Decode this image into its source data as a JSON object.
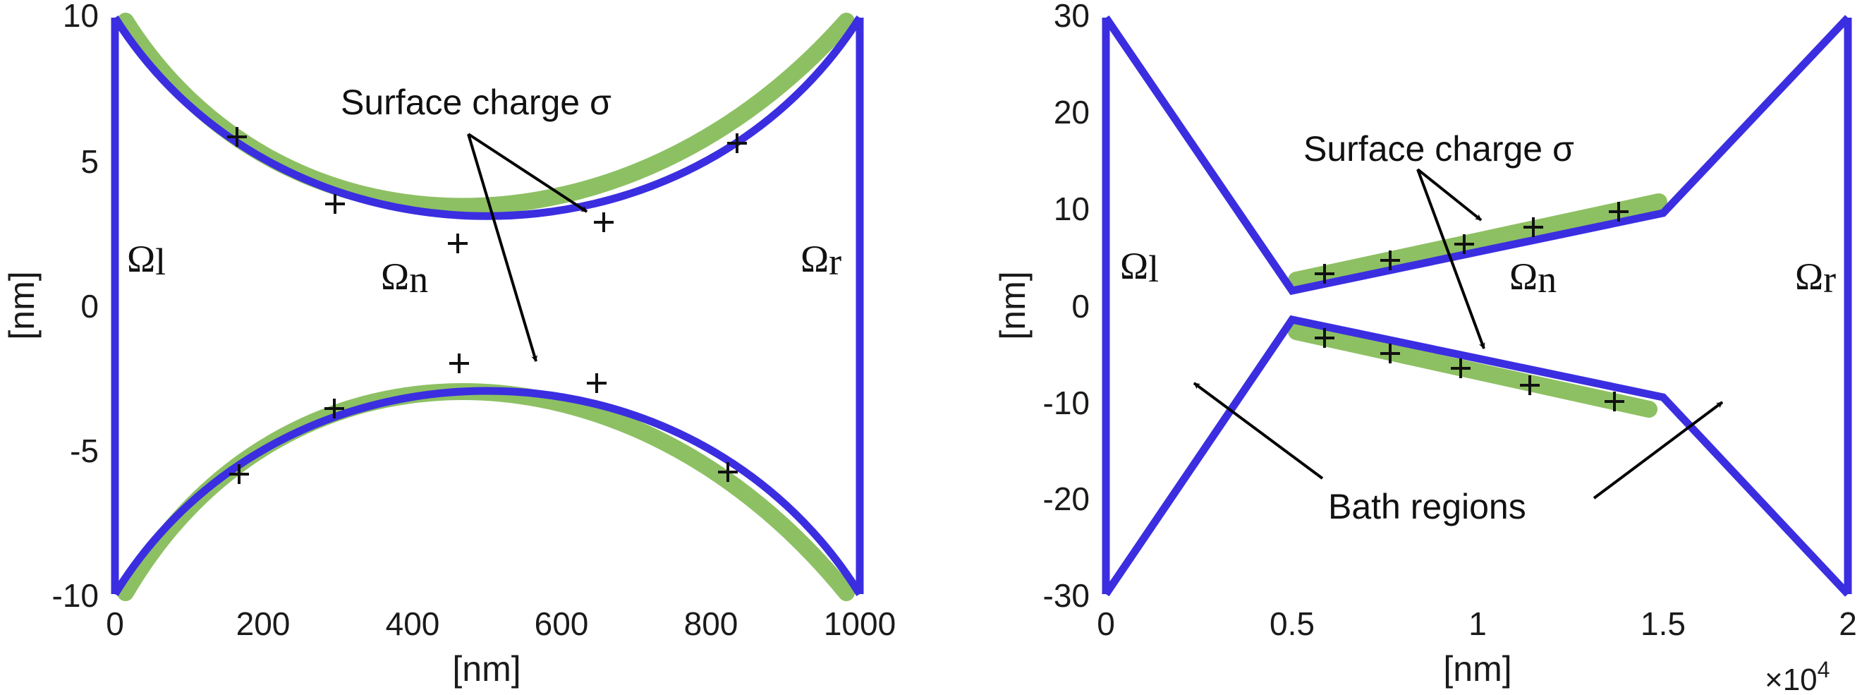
{
  "colors": {
    "boundary": "#3b2ee0",
    "surface_charge": "#8dc063",
    "marker": "#111111"
  },
  "panels": [
    {
      "x_ticks": [
        "0",
        "200",
        "400",
        "600",
        "800",
        "1000"
      ],
      "y_ticks": [
        "10",
        "5",
        "0",
        "-5",
        "-10"
      ],
      "xlabel": "[nm]",
      "ylabel": "[nm]",
      "annotation": "Surface charge σ",
      "regions": [
        {
          "main": "Ω",
          "sub": "l"
        },
        {
          "main": "Ω",
          "sub": "n"
        },
        {
          "main": "Ω",
          "sub": "r"
        }
      ]
    },
    {
      "x_ticks": [
        "0",
        "0.5",
        "1",
        "1.5",
        "2"
      ],
      "y_ticks": [
        "30",
        "20",
        "10",
        "0",
        "-10",
        "-20",
        "-30"
      ],
      "xlabel": "[nm]",
      "ylabel": "[nm]",
      "x_exponent_base": "×10",
      "x_exponent_power": "4",
      "annotation": "Surface charge σ",
      "annotation2": "Bath regions",
      "regions": [
        {
          "main": "Ω",
          "sub": "l"
        },
        {
          "main": "Ω",
          "sub": "n"
        },
        {
          "main": "Ω",
          "sub": "r"
        }
      ]
    }
  ]
}
